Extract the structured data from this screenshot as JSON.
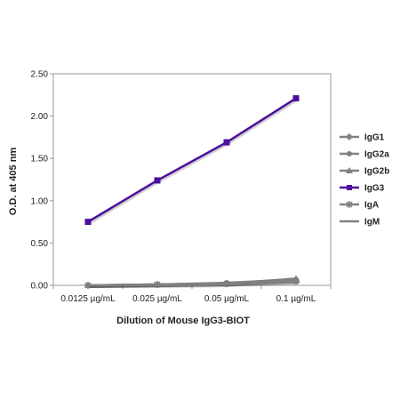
{
  "chart_data": {
    "type": "line",
    "xlabel": "Dilution of Mouse IgG3-BIOT",
    "ylabel": "O.D. at 405 nm",
    "categories": [
      "0.0125 µg/mL",
      "0.025 µg/mL",
      "0.05 µg/mL",
      "0.1 µg/mL"
    ],
    "ylim": [
      0,
      2.5
    ],
    "yticks": [
      "0.00",
      "0.50",
      "1.00",
      "1.50",
      "2.00",
      "2.50"
    ],
    "grid": false,
    "legend_position": "right",
    "series": [
      {
        "name": "IgG1",
        "values": [
          0.0,
          0.01,
          0.02,
          0.06
        ],
        "color": "#808080",
        "marker": "diamond"
      },
      {
        "name": "IgG2a",
        "values": [
          0.0,
          0.01,
          0.03,
          0.07
        ],
        "color": "#808080",
        "marker": "circle"
      },
      {
        "name": "IgG2b",
        "values": [
          0.0,
          0.01,
          0.02,
          0.08
        ],
        "color": "#808080",
        "marker": "triangle"
      },
      {
        "name": "IgG3",
        "values": [
          0.75,
          1.24,
          1.69,
          2.21
        ],
        "color": "#4b0f9c",
        "marker": "square"
      },
      {
        "name": "IgA",
        "values": [
          0.0,
          0.01,
          0.02,
          0.05
        ],
        "color": "#808080",
        "marker": "star"
      },
      {
        "name": "IgM",
        "values": [
          0.0,
          0.0,
          0.01,
          0.04
        ],
        "color": "#808080",
        "marker": "dash"
      }
    ]
  }
}
